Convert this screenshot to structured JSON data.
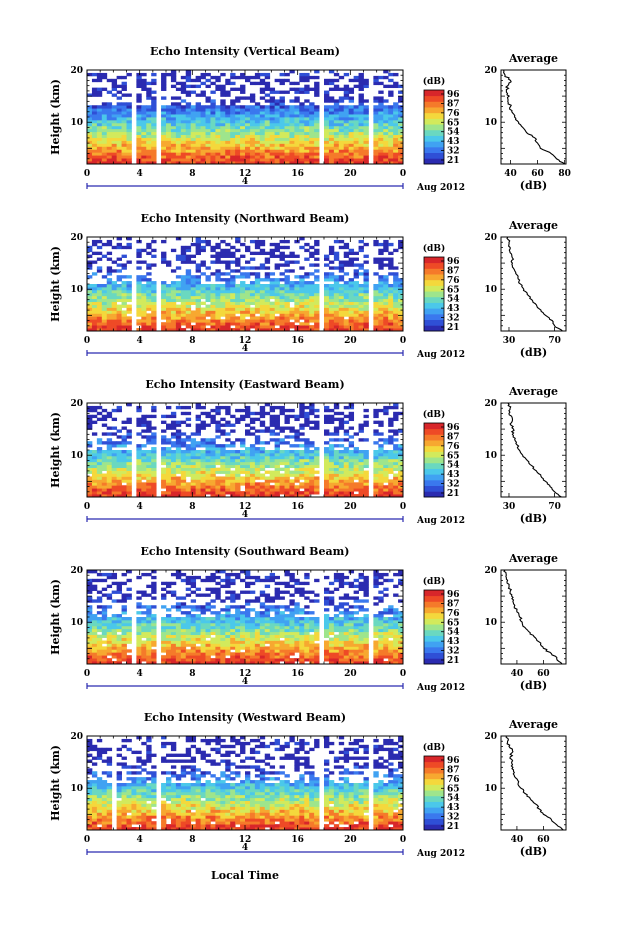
{
  "figure": {
    "x_axis_title": "Local Time",
    "date_label": "Aug 2012",
    "day_marker": "4",
    "cbar_unit": "(dB)",
    "avg_title": "Average",
    "avg_xlabel": "(dB)",
    "y_axis_title": "Height (km)"
  },
  "colormap": [
    "#2b2bb0",
    "#2f4fd6",
    "#3a78ee",
    "#40a2f2",
    "#4bc8ea",
    "#6ad8c0",
    "#9ee58c",
    "#d2ea5c",
    "#f4d83c",
    "#f7a830",
    "#f57a2a",
    "#ee4a26",
    "#d8262a"
  ],
  "chart_data": [
    {
      "type": "heatmap",
      "title": "Echo Intensity (Vertical Beam)",
      "ylabel": "Height (km)",
      "xlabel": "Local Time",
      "xlim": [
        0,
        24
      ],
      "ylim": [
        2,
        20
      ],
      "xticks": [
        "0",
        "4",
        "8",
        "12",
        "16",
        "20",
        "0"
      ],
      "yticks": [
        "10",
        "20"
      ],
      "colorbar_ticks": [
        "96",
        "87",
        "76",
        "65",
        "54",
        "43",
        "32",
        "21"
      ],
      "data_gaps_hours": [
        [
          3.3,
          3.9
        ],
        [
          5.2,
          5.7
        ],
        [
          17.7,
          18.0
        ],
        [
          21.4,
          21.8
        ]
      ],
      "average_profile": {
        "xlabel": "(dB)",
        "xticks": [
          "40",
          "60",
          "80"
        ],
        "xlim": [
          33,
          81
        ],
        "heights_km": [
          2,
          3,
          4,
          5,
          6,
          7,
          8,
          9,
          10,
          11,
          12,
          13,
          14,
          15,
          16,
          17,
          18,
          19,
          20
        ],
        "values_db": [
          80,
          74,
          70,
          62,
          60,
          58,
          52,
          49,
          46,
          43,
          41,
          40,
          38,
          39,
          37,
          38,
          40,
          36,
          35
        ]
      }
    },
    {
      "type": "heatmap",
      "title": "Echo Intensity (Northward Beam)",
      "ylabel": "Height (km)",
      "xlabel": "Local Time",
      "xlim": [
        0,
        24
      ],
      "ylim": [
        2,
        20
      ],
      "xticks": [
        "0",
        "4",
        "8",
        "12",
        "16",
        "20",
        "0"
      ],
      "yticks": [
        "10",
        "20"
      ],
      "colorbar_ticks": [
        "96",
        "87",
        "76",
        "65",
        "54",
        "43",
        "32",
        "21"
      ],
      "data_gaps_hours": [
        [
          3.3,
          3.9
        ],
        [
          5.2,
          5.7
        ],
        [
          17.7,
          18.0
        ],
        [
          21.4,
          21.8
        ]
      ],
      "average_profile": {
        "xlabel": "(dB)",
        "xticks": [
          "30",
          "70"
        ],
        "xlim": [
          23,
          80
        ],
        "heights_km": [
          2,
          3,
          4,
          5,
          6,
          7,
          8,
          9,
          10,
          11,
          12,
          13,
          14,
          15,
          16,
          17,
          18,
          19,
          20
        ],
        "values_db": [
          77,
          70,
          68,
          62,
          58,
          54,
          50,
          46,
          43,
          40,
          38,
          36,
          34,
          33,
          33,
          31,
          31,
          30,
          29
        ]
      }
    },
    {
      "type": "heatmap",
      "title": "Echo Intensity (Eastward Beam)",
      "ylabel": "Height (km)",
      "xlabel": "Local Time",
      "xlim": [
        0,
        24
      ],
      "ylim": [
        2,
        20
      ],
      "xticks": [
        "0",
        "4",
        "8",
        "12",
        "16",
        "20",
        "0"
      ],
      "yticks": [
        "10",
        "20"
      ],
      "colorbar_ticks": [
        "96",
        "87",
        "76",
        "65",
        "54",
        "43",
        "32",
        "21"
      ],
      "data_gaps_hours": [
        [
          3.3,
          3.9
        ],
        [
          5.2,
          5.7
        ],
        [
          17.7,
          18.0
        ],
        [
          21.4,
          21.8
        ]
      ],
      "average_profile": {
        "xlabel": "(dB)",
        "xticks": [
          "30",
          "70"
        ],
        "xlim": [
          23,
          80
        ],
        "heights_km": [
          2,
          3,
          4,
          5,
          6,
          7,
          8,
          9,
          10,
          11,
          12,
          13,
          14,
          15,
          16,
          17,
          18,
          19,
          20
        ],
        "values_db": [
          76,
          70,
          66,
          62,
          58,
          54,
          50,
          46,
          42,
          39,
          37,
          35,
          33,
          34,
          31,
          33,
          30,
          31,
          29
        ]
      }
    },
    {
      "type": "heatmap",
      "title": "Echo Intensity (Southward Beam)",
      "ylabel": "Height (km)",
      "xlabel": "Local Time",
      "xlim": [
        0,
        24
      ],
      "ylim": [
        2,
        20
      ],
      "xticks": [
        "0",
        "4",
        "8",
        "12",
        "16",
        "20",
        "0"
      ],
      "yticks": [
        "10",
        "20"
      ],
      "colorbar_ticks": [
        "96",
        "87",
        "76",
        "65",
        "54",
        "43",
        "32",
        "21"
      ],
      "data_gaps_hours": [
        [
          3.3,
          3.9
        ],
        [
          5.2,
          5.7
        ],
        [
          17.7,
          18.0
        ],
        [
          21.4,
          21.8
        ]
      ],
      "average_profile": {
        "xlabel": "(dB)",
        "xticks": [
          "40",
          "60"
        ],
        "xlim": [
          28,
          77
        ],
        "heights_km": [
          2,
          3,
          4,
          5,
          6,
          7,
          8,
          9,
          10,
          11,
          12,
          13,
          14,
          15,
          16,
          17,
          18,
          19,
          20
        ],
        "values_db": [
          74,
          70,
          66,
          60,
          58,
          54,
          50,
          46,
          44,
          42,
          40,
          38,
          37,
          36,
          35,
          34,
          33,
          32,
          31
        ]
      }
    },
    {
      "type": "heatmap",
      "title": "Echo Intensity (Westward Beam)",
      "ylabel": "Height (km)",
      "xlabel": "Local Time",
      "xlim": [
        0,
        24
      ],
      "ylim": [
        2,
        20
      ],
      "xticks": [
        "0",
        "4",
        "8",
        "12",
        "16",
        "20",
        "0"
      ],
      "yticks": [
        "10",
        "20"
      ],
      "colorbar_ticks": [
        "96",
        "87",
        "76",
        "65",
        "54",
        "43",
        "32",
        "21"
      ],
      "data_gaps_hours": [
        [
          1.8,
          2.4
        ],
        [
          5.2,
          5.7
        ],
        [
          17.7,
          18.0
        ],
        [
          21.4,
          21.8
        ]
      ],
      "average_profile": {
        "xlabel": "(dB)",
        "xticks": [
          "40",
          "60"
        ],
        "xlim": [
          28,
          77
        ],
        "heights_km": [
          2,
          3,
          4,
          5,
          6,
          7,
          8,
          9,
          10,
          11,
          12,
          13,
          14,
          15,
          16,
          17,
          18,
          19,
          20
        ],
        "values_db": [
          75,
          70,
          66,
          60,
          57,
          54,
          50,
          46,
          43,
          41,
          39,
          38,
          37,
          36,
          35,
          37,
          34,
          33,
          32
        ]
      }
    }
  ]
}
